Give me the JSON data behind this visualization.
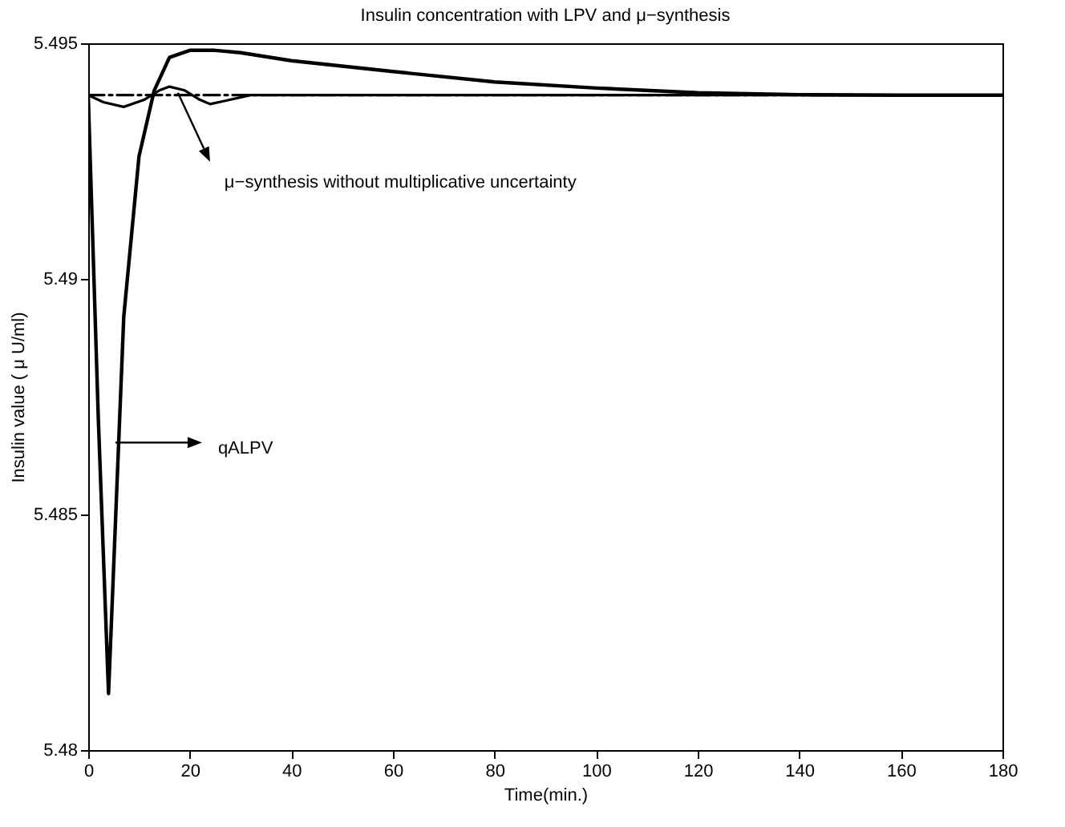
{
  "chart_data": {
    "type": "line",
    "title": "Insulin concentration with LPV and μ−synthesis",
    "xlabel": "Time(min.)",
    "ylabel": "Insulin value ( μ U/ml)",
    "xlim": [
      0,
      180
    ],
    "xticks": [
      0,
      20,
      40,
      60,
      80,
      100,
      120,
      140,
      160,
      180
    ],
    "ylim": [
      5.48,
      5.495
    ],
    "yticks": [
      5.48,
      5.485,
      5.49,
      5.495
    ],
    "grid": false,
    "series": [
      {
        "color": "#000000",
        "line_style": "solid",
        "x": [
          0,
          2,
          4,
          7,
          10,
          13,
          16,
          20,
          25,
          30,
          40,
          60,
          80,
          100,
          120,
          140,
          160,
          180
        ],
        "values": [
          5.4939,
          5.487,
          5.4812,
          5.4892,
          5.4926,
          5.494,
          5.4947,
          5.49485,
          5.49485,
          5.4948,
          5.49463,
          5.4944,
          5.49418,
          5.49405,
          5.49395,
          5.49391,
          5.4939,
          5.4939
        ]
      },
      {
        "color": "#000000",
        "line_style": "solid",
        "x": [
          0,
          3,
          7,
          11,
          14,
          16,
          19,
          22,
          24,
          27,
          32,
          40,
          180
        ],
        "values": [
          5.4939,
          5.49375,
          5.49365,
          5.4938,
          5.494,
          5.49408,
          5.494,
          5.4938,
          5.49371,
          5.49378,
          5.4939,
          5.4939,
          5.4939
        ]
      },
      {
        "color": "#000000",
        "line_style": "dashed",
        "x": [
          0,
          180
        ],
        "values": [
          5.4939,
          5.4939
        ]
      }
    ],
    "annotations": [
      "μ−synthesis without multiplicative uncertainty",
      "qALPV"
    ]
  }
}
